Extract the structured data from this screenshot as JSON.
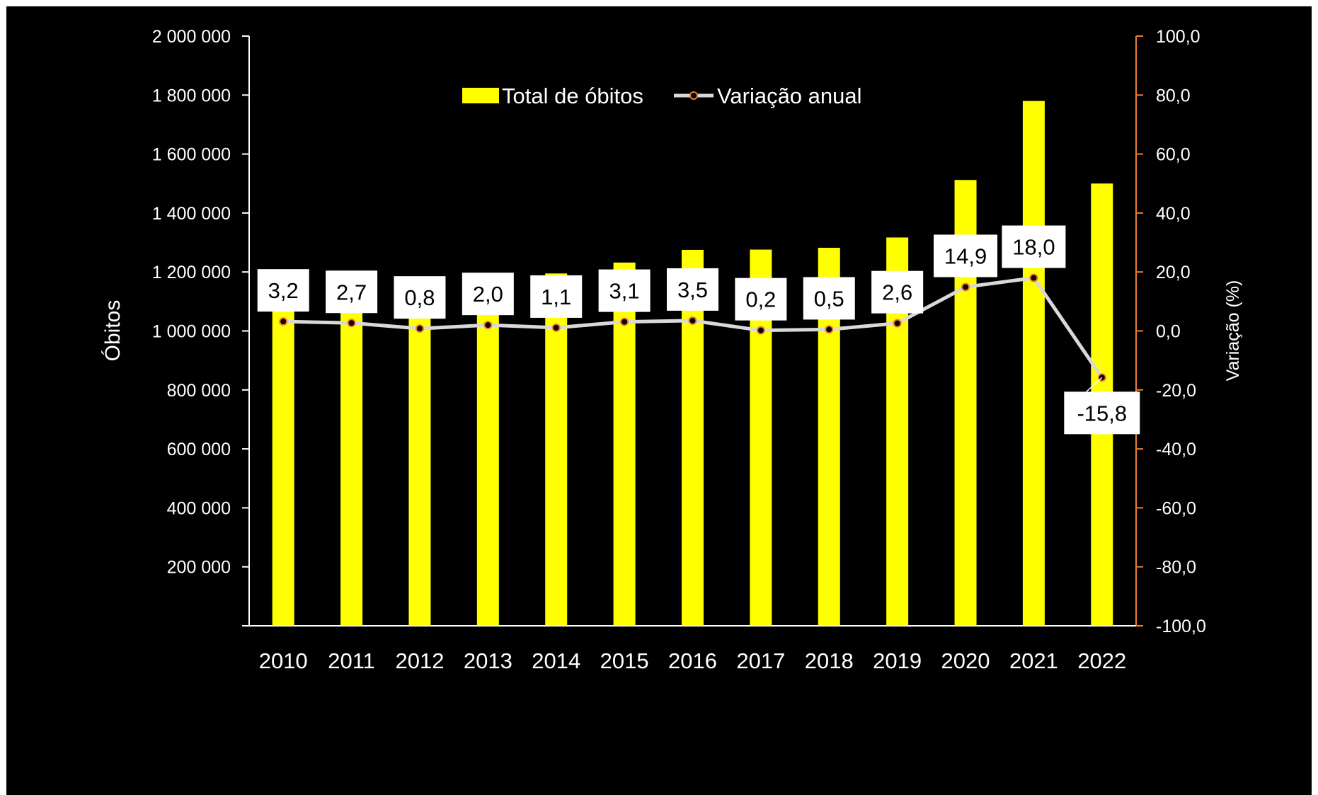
{
  "chart_data": {
    "type": "bar",
    "categories": [
      "2010",
      "2011",
      "2012",
      "2013",
      "2014",
      "2015",
      "2016",
      "2017",
      "2018",
      "2019",
      "2020",
      "2021",
      "2022"
    ],
    "series": [
      {
        "name": "Total de óbitos",
        "type": "bar",
        "axis": "left",
        "color": "#ffff00",
        "values": [
          1120000,
          1150000,
          1160000,
          1185000,
          1195000,
          1232000,
          1275000,
          1276000,
          1282000,
          1317000,
          1512000,
          1780000,
          1500000
        ]
      },
      {
        "name": "Variação anual",
        "type": "line",
        "axis": "right",
        "color": "#d9d9d9",
        "marker_color": "#000000",
        "marker_edge": "#ed7d31",
        "values": [
          3.2,
          2.7,
          0.8,
          2.0,
          1.1,
          3.1,
          3.5,
          0.2,
          0.5,
          2.6,
          14.9,
          18.0,
          -15.8
        ],
        "labels": [
          "3,2",
          "2,7",
          "0,8",
          "2,0",
          "1,1",
          "3,1",
          "3,5",
          "0,2",
          "0,5",
          "2,6",
          "14,9",
          "18,0",
          "-15,8"
        ]
      }
    ],
    "ylabel": "Óbitos",
    "y2label": "Variação  (%)",
    "ylim": [
      0,
      2000000
    ],
    "y2lim": [
      -100,
      100
    ],
    "yticks": [
      "200 000",
      "400 000",
      "600 000",
      "800 000",
      "1 000 000",
      "1 200 000",
      "1 400 000",
      "1 600 000",
      "1 800 000",
      "2 000 000"
    ],
    "y2ticks": [
      "-100,0",
      "-80,0",
      "-60,0",
      "-40,0",
      "-20,0",
      "0,0",
      "20,0",
      "40,0",
      "60,0",
      "80,0",
      "100,0"
    ],
    "y2_axis_color": "#ed7d31",
    "legend_position": "top-center",
    "grid": false,
    "background": "#000000"
  }
}
